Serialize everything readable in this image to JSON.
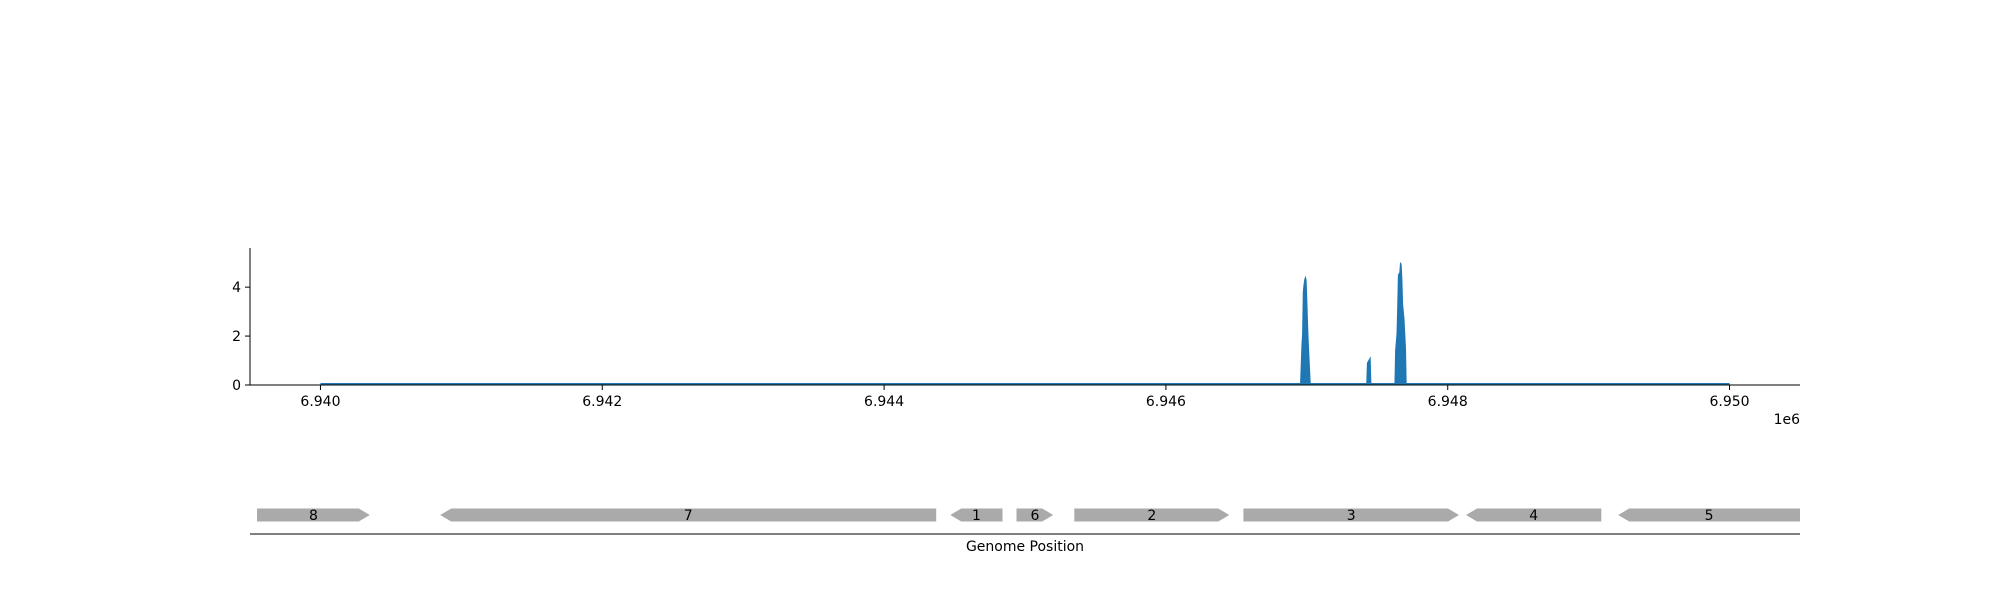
{
  "chart_data": [
    {
      "type": "area",
      "title": "",
      "xlabel": "",
      "ylabel": "",
      "x_offset_label": "1e6",
      "xlim": [
        6.9395,
        6.9505
      ],
      "ylim": [
        0,
        5.6
      ],
      "x_ticks": [
        6.94,
        6.942,
        6.944,
        6.946,
        6.948,
        6.95
      ],
      "x_tick_labels": [
        "6.940",
        "6.942",
        "6.944",
        "6.946",
        "6.948",
        "6.950"
      ],
      "y_ticks": [
        0,
        2,
        4
      ],
      "y_tick_labels": [
        "0",
        "2",
        "4"
      ],
      "grid": false,
      "color": "#1f77b4",
      "baseline_x_range": [
        6.94,
        6.95
      ],
      "series": [
        {
          "points": [
            [
              6.946955,
              0.0
            ],
            [
              6.94696,
              0.8
            ],
            [
              6.946965,
              1.6
            ],
            [
              6.94697,
              2.1
            ],
            [
              6.946975,
              3.8
            ],
            [
              6.94698,
              4.1
            ],
            [
              6.946985,
              4.3
            ],
            [
              6.94699,
              4.4
            ],
            [
              6.946995,
              4.3
            ],
            [
              6.947,
              3.5
            ],
            [
              6.947005,
              2.6
            ],
            [
              6.94701,
              1.8
            ],
            [
              6.947015,
              1.2
            ],
            [
              6.94702,
              0.6
            ],
            [
              6.947025,
              0.0
            ]
          ]
        },
        {
          "points": [
            [
              6.947425,
              0.0
            ],
            [
              6.94743,
              0.9
            ],
            [
              6.94744,
              1.0
            ],
            [
              6.94745,
              1.1
            ],
            [
              6.947455,
              0.0
            ]
          ]
        },
        {
          "points": [
            [
              6.947625,
              0.0
            ],
            [
              6.94763,
              1.4
            ],
            [
              6.94764,
              2.1
            ],
            [
              6.947645,
              3.2
            ],
            [
              6.94765,
              4.5
            ],
            [
              6.94766,
              4.6
            ],
            [
              6.947665,
              5.0
            ],
            [
              6.94767,
              4.9
            ],
            [
              6.947675,
              4.3
            ],
            [
              6.94768,
              3.3
            ],
            [
              6.94769,
              2.7
            ],
            [
              6.9477,
              1.5
            ],
            [
              6.947705,
              0.0
            ]
          ]
        }
      ]
    },
    {
      "type": "gene_track",
      "xlabel": "Genome Position",
      "xlim": [
        6.9395,
        6.9505
      ],
      "color": "#aaaaaa",
      "genes": [
        {
          "label": "8",
          "start": 6.93955,
          "end": 6.94035,
          "strand": "+"
        },
        {
          "label": "7",
          "start": 6.94085,
          "end": 6.94437,
          "strand": "-"
        },
        {
          "label": "1",
          "start": 6.94447,
          "end": 6.94484,
          "strand": "-"
        },
        {
          "label": "6",
          "start": 6.94494,
          "end": 6.9452,
          "strand": "+"
        },
        {
          "label": "2",
          "start": 6.94535,
          "end": 6.94645,
          "strand": "+"
        },
        {
          "label": "3",
          "start": 6.94655,
          "end": 6.94808,
          "strand": "+"
        },
        {
          "label": "4",
          "start": 6.94813,
          "end": 6.94909,
          "strand": "-"
        },
        {
          "label": "5",
          "start": 6.94921,
          "end": 6.9505,
          "strand": "-"
        }
      ]
    }
  ]
}
